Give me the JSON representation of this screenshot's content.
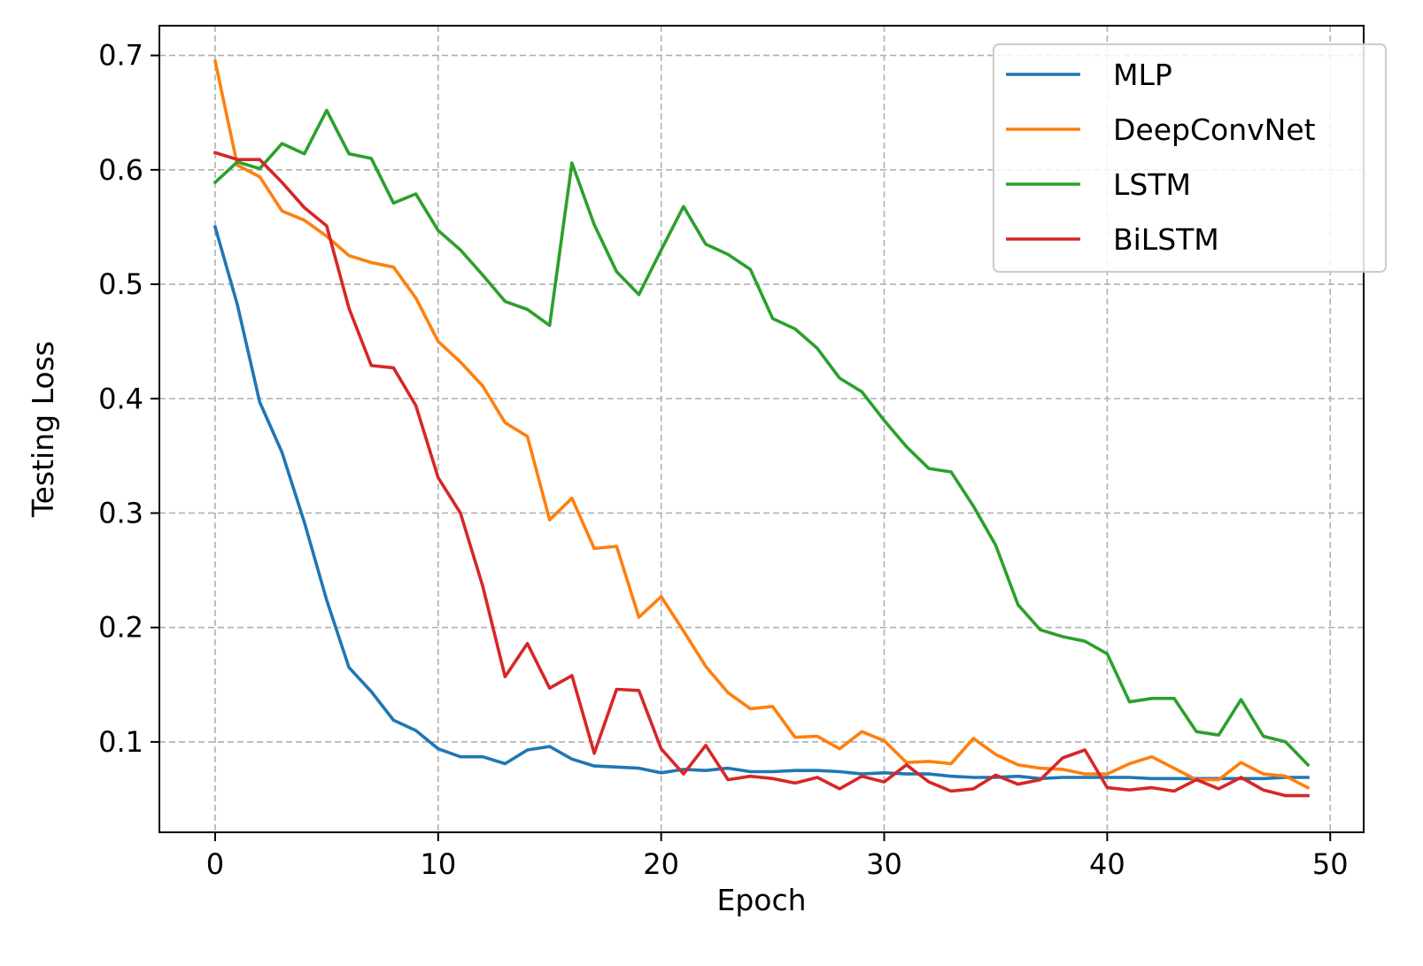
{
  "chart_data": {
    "type": "line",
    "title": "",
    "xlabel": "Epoch",
    "ylabel": "Testing Loss",
    "xlim": [
      -2.5,
      51.5
    ],
    "ylim": [
      0.021,
      0.726
    ],
    "xticks": [
      0,
      10,
      20,
      30,
      40,
      50
    ],
    "yticks": [
      0.1,
      0.2,
      0.3,
      0.4,
      0.5,
      0.6,
      0.7
    ],
    "xtick_labels": [
      "0",
      "10",
      "20",
      "30",
      "40",
      "50"
    ],
    "ytick_labels": [
      "0.1",
      "0.2",
      "0.3",
      "0.4",
      "0.5",
      "0.6",
      "0.7"
    ],
    "grid": true,
    "legend_position": "top-right",
    "x": [
      0,
      1,
      2,
      3,
      4,
      5,
      6,
      7,
      8,
      9,
      10,
      11,
      12,
      13,
      14,
      15,
      16,
      17,
      18,
      19,
      20,
      21,
      22,
      23,
      24,
      25,
      26,
      27,
      28,
      29,
      30,
      31,
      32,
      33,
      34,
      35,
      36,
      37,
      38,
      39,
      40,
      41,
      42,
      43,
      44,
      45,
      46,
      47,
      48,
      49
    ],
    "series": [
      {
        "name": "MLP",
        "color": "#1f77b4",
        "values": [
          0.55,
          0.482,
          0.397,
          0.353,
          0.292,
          0.224,
          0.165,
          0.144,
          0.119,
          0.11,
          0.094,
          0.087,
          0.087,
          0.081,
          0.093,
          0.096,
          0.085,
          0.079,
          0.078,
          0.077,
          0.073,
          0.076,
          0.075,
          0.077,
          0.074,
          0.074,
          0.075,
          0.075,
          0.074,
          0.072,
          0.073,
          0.072,
          0.072,
          0.07,
          0.069,
          0.069,
          0.07,
          0.068,
          0.069,
          0.069,
          0.069,
          0.069,
          0.068,
          0.068,
          0.068,
          0.068,
          0.068,
          0.068,
          0.069,
          0.069
        ]
      },
      {
        "name": "DeepConvNet",
        "color": "#ff7f0e",
        "values": [
          0.695,
          0.604,
          0.594,
          0.564,
          0.556,
          0.542,
          0.525,
          0.519,
          0.515,
          0.488,
          0.45,
          0.432,
          0.411,
          0.379,
          0.367,
          0.294,
          0.313,
          0.269,
          0.271,
          0.209,
          0.227,
          0.197,
          0.166,
          0.143,
          0.129,
          0.131,
          0.104,
          0.105,
          0.094,
          0.109,
          0.101,
          0.082,
          0.083,
          0.081,
          0.103,
          0.089,
          0.08,
          0.077,
          0.076,
          0.072,
          0.072,
          0.081,
          0.087,
          0.077,
          0.067,
          0.067,
          0.082,
          0.072,
          0.07,
          0.06
        ]
      },
      {
        "name": "LSTM",
        "color": "#2ca02c",
        "values": [
          0.589,
          0.607,
          0.601,
          0.623,
          0.614,
          0.652,
          0.614,
          0.61,
          0.571,
          0.579,
          0.547,
          0.53,
          0.508,
          0.485,
          0.478,
          0.464,
          0.606,
          0.552,
          0.511,
          0.491,
          0.53,
          0.568,
          0.535,
          0.526,
          0.513,
          0.47,
          0.461,
          0.444,
          0.418,
          0.406,
          0.381,
          0.358,
          0.339,
          0.336,
          0.306,
          0.272,
          0.22,
          0.198,
          0.192,
          0.188,
          0.177,
          0.135,
          0.138,
          0.138,
          0.109,
          0.106,
          0.137,
          0.105,
          0.1,
          0.08
        ]
      },
      {
        "name": "BiLSTM",
        "color": "#d62728",
        "values": [
          0.615,
          0.609,
          0.609,
          0.589,
          0.567,
          0.551,
          0.479,
          0.429,
          0.427,
          0.394,
          0.331,
          0.3,
          0.236,
          0.157,
          0.186,
          0.147,
          0.158,
          0.09,
          0.146,
          0.145,
          0.094,
          0.072,
          0.097,
          0.067,
          0.07,
          0.068,
          0.064,
          0.069,
          0.059,
          0.07,
          0.065,
          0.08,
          0.065,
          0.057,
          0.059,
          0.071,
          0.063,
          0.067,
          0.086,
          0.093,
          0.06,
          0.058,
          0.06,
          0.057,
          0.067,
          0.059,
          0.069,
          0.058,
          0.053,
          0.053
        ]
      }
    ]
  }
}
